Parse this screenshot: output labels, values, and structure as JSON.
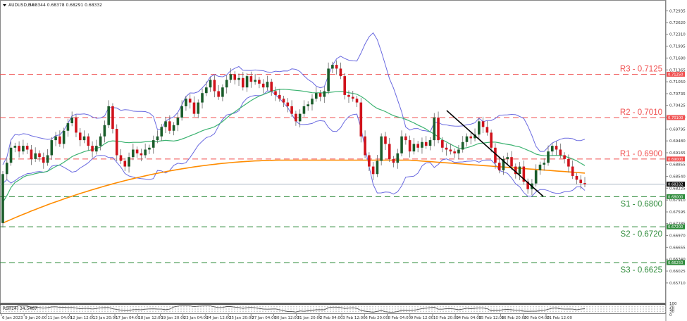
{
  "header": {
    "symbol": "AUDUSD,H4",
    "ohlc": "0.68344 0.68378 0.68291 0.68332"
  },
  "colors": {
    "bull": "#1a5c2a",
    "bear": "#d0121b",
    "wick": "#666666",
    "bollinger": "#6a6ae0",
    "ma_fast": "#3cb371",
    "ma_slow": "#ff8c00",
    "resistance": "#f05050",
    "support": "#2e8b3a",
    "current_price_line": "#a9b4c2",
    "trendline": "#000000",
    "rsi_line": "#555555"
  },
  "levels": [
    {
      "name": "R3",
      "label": "R3 - 0.7125",
      "value": 0.7125,
      "tag": "0.71250",
      "type": "resistance"
    },
    {
      "name": "R2",
      "label": "R2 - 0.7010",
      "value": 0.701,
      "tag": "0.70100",
      "type": "resistance"
    },
    {
      "name": "R1",
      "label": "R1 - 0.6900",
      "value": 0.69,
      "tag": "0.69000",
      "type": "resistance"
    },
    {
      "name": "S1",
      "label": "S1 - 0.6800",
      "value": 0.68,
      "tag": "0.68000",
      "type": "support"
    },
    {
      "name": "S2",
      "label": "S2 - 0.6720",
      "value": 0.672,
      "tag": "0.67200",
      "type": "support"
    },
    {
      "name": "S3",
      "label": "S3 - 0.6625",
      "value": 0.6625,
      "tag": "0.66250",
      "type": "support"
    }
  ],
  "current_price": {
    "value": 0.68332,
    "tag": "0.68332"
  },
  "price_axis": {
    "ticks": [
      "0.72935",
      "0.72620",
      "0.72310",
      "0.71995",
      "0.71680",
      "0.71365",
      "0.71050",
      "0.70735",
      "0.70425",
      "0.70110",
      "0.69795",
      "0.69480",
      "0.69165",
      "0.68855",
      "0.68540",
      "0.68225",
      "0.67910",
      "0.67595",
      "0.67285",
      "0.66970",
      "0.66655",
      "0.66340",
      "0.66025",
      "0.65710"
    ]
  },
  "rsi": {
    "label": "RSI(14) 34.5467",
    "ticks": [
      "100",
      "70",
      "50",
      "30",
      "0"
    ]
  },
  "time_axis": {
    "labels": [
      "6 Jan 2023",
      "9 Jan 20:00",
      "11 Jan 04:00",
      "12 Jan 12:00",
      "13 Jan 20:00",
      "17 Jan 04:00",
      "18 Jan 12:00",
      "19 Jan 20:00",
      "23 Jan 04:00",
      "24 Jan 12:00",
      "25 Jan 20:00",
      "27 Jan 04:00",
      "30 Jan 12:00",
      "31 Jan 20:00",
      "2 Feb 04:00",
      "3 Feb 12:00",
      "6 Feb 20:00",
      "8 Feb 04:00",
      "9 Feb 12:00",
      "10 Feb 20:00",
      "14 Feb 04:00",
      "15 Feb 12:00",
      "16 Feb 20:00",
      "20 Feb 04:00",
      "21 Feb 12:00"
    ]
  },
  "chart_data": {
    "type": "candlestick",
    "title": "AUDUSD,H4",
    "ohlc_last": {
      "open": 0.68344,
      "high": 0.68378,
      "low": 0.68291,
      "close": 0.68332
    },
    "ylim": [
      0.6555,
      0.731
    ],
    "xlabel": "",
    "ylabel": "",
    "grid": false,
    "indicators": [
      "Bollinger Bands (blue)",
      "MA fast (green)",
      "MA 200 (orange)",
      "RSI(14)"
    ],
    "rsi_value": 34.5467,
    "annotations": [
      "R3 - 0.7125",
      "R2 - 0.7010",
      "R1 - 0.6900",
      "S1 - 0.6800",
      "S2 - 0.6720",
      "S3 - 0.6625",
      "descending trendline from 14 Feb high"
    ],
    "close_path": [
      [
        0.673,
        0.686
      ],
      [
        0.686,
        0.689
      ],
      [
        0.689,
        0.693
      ],
      [
        0.693,
        0.6935
      ],
      [
        0.6935,
        0.692
      ],
      [
        0.692,
        0.6935
      ],
      [
        0.6935,
        0.6925
      ],
      [
        0.6925,
        0.69
      ],
      [
        0.69,
        0.6915
      ],
      [
        0.6915,
        0.6905
      ],
      [
        0.6905,
        0.689
      ],
      [
        0.689,
        0.691
      ],
      [
        0.691,
        0.695
      ],
      [
        0.695,
        0.696
      ],
      [
        0.696,
        0.694
      ],
      [
        0.694,
        0.6975
      ],
      [
        0.6975,
        0.6995
      ],
      [
        0.6995,
        0.701
      ],
      [
        0.701,
        0.697
      ],
      [
        0.697,
        0.695
      ],
      [
        0.695,
        0.696
      ],
      [
        0.696,
        0.6935
      ],
      [
        0.6935,
        0.692
      ],
      [
        0.692,
        0.6935
      ],
      [
        0.6935,
        0.696
      ],
      [
        0.696,
        0.699
      ],
      [
        0.699,
        0.704
      ],
      [
        0.704,
        0.698
      ],
      [
        0.698,
        0.691
      ],
      [
        0.691,
        0.6895
      ],
      [
        0.6895,
        0.688
      ],
      [
        0.688,
        0.6905
      ],
      [
        0.6905,
        0.6925
      ],
      [
        0.6925,
        0.6915
      ],
      [
        0.6915,
        0.691
      ],
      [
        0.691,
        0.6925
      ],
      [
        0.6925,
        0.693
      ],
      [
        0.693,
        0.695
      ],
      [
        0.695,
        0.696
      ],
      [
        0.696,
        0.6985
      ],
      [
        0.6985,
        0.7
      ],
      [
        0.7,
        0.6975
      ],
      [
        0.6975,
        0.699
      ],
      [
        0.699,
        0.701
      ],
      [
        0.701,
        0.704
      ],
      [
        0.704,
        0.706
      ],
      [
        0.706,
        0.705
      ],
      [
        0.705,
        0.702
      ],
      [
        0.702,
        0.705
      ],
      [
        0.705,
        0.7075
      ],
      [
        0.7075,
        0.709
      ],
      [
        0.709,
        0.711
      ],
      [
        0.711,
        0.708
      ],
      [
        0.708,
        0.7065
      ],
      [
        0.7065,
        0.709
      ],
      [
        0.709,
        0.711
      ],
      [
        0.711,
        0.7125
      ],
      [
        0.7125,
        0.711
      ],
      [
        0.711,
        0.7115
      ],
      [
        0.7115,
        0.709
      ],
      [
        0.709,
        0.712
      ],
      [
        0.712,
        0.7105
      ],
      [
        0.7105,
        0.711
      ],
      [
        0.711,
        0.71
      ],
      [
        0.71,
        0.709
      ],
      [
        0.709,
        0.7105
      ],
      [
        0.7105,
        0.708
      ],
      [
        0.708,
        0.707
      ],
      [
        0.707,
        0.706
      ],
      [
        0.706,
        0.705
      ],
      [
        0.705,
        0.704
      ],
      [
        0.704,
        0.702
      ],
      [
        0.702,
        0.7
      ],
      [
        0.7,
        0.702
      ],
      [
        0.702,
        0.704
      ],
      [
        0.704,
        0.7045
      ],
      [
        0.7045,
        0.706
      ],
      [
        0.706,
        0.7075
      ],
      [
        0.7075,
        0.7065
      ],
      [
        0.7065,
        0.708
      ],
      [
        0.708,
        0.714
      ],
      [
        0.714,
        0.715
      ],
      [
        0.715,
        0.714
      ],
      [
        0.714,
        0.712
      ],
      [
        0.712,
        0.707
      ],
      [
        0.707,
        0.7065
      ],
      [
        0.7065,
        0.706
      ],
      [
        0.706,
        0.705
      ],
      [
        0.705,
        0.696
      ],
      [
        0.696,
        0.691
      ],
      [
        0.691,
        0.688
      ],
      [
        0.688,
        0.686
      ],
      [
        0.686,
        0.6895
      ],
      [
        0.6895,
        0.696
      ],
      [
        0.696,
        0.694
      ],
      [
        0.694,
        0.69
      ],
      [
        0.69,
        0.689
      ],
      [
        0.689,
        0.6915
      ],
      [
        0.6915,
        0.696
      ],
      [
        0.696,
        0.695
      ],
      [
        0.695,
        0.692
      ],
      [
        0.692,
        0.694
      ],
      [
        0.694,
        0.693
      ],
      [
        0.693,
        0.6945
      ],
      [
        0.6945,
        0.6935
      ],
      [
        0.6935,
        0.695
      ],
      [
        0.695,
        0.701
      ],
      [
        0.701,
        0.695
      ],
      [
        0.695,
        0.693
      ],
      [
        0.693,
        0.6925
      ],
      [
        0.6925,
        0.692
      ],
      [
        0.692,
        0.6915
      ],
      [
        0.6915,
        0.6925
      ],
      [
        0.6925,
        0.6945
      ],
      [
        0.6945,
        0.696
      ],
      [
        0.696,
        0.6955
      ],
      [
        0.6955,
        0.6965
      ],
      [
        0.6965,
        0.7
      ],
      [
        0.7,
        0.6985
      ],
      [
        0.6985,
        0.697
      ],
      [
        0.697,
        0.693
      ],
      [
        0.693,
        0.689
      ],
      [
        0.689,
        0.687
      ],
      [
        0.687,
        0.69
      ],
      [
        0.69,
        0.6905
      ],
      [
        0.6905,
        0.688
      ],
      [
        0.688,
        0.686
      ],
      [
        0.686,
        0.688
      ],
      [
        0.688,
        0.684
      ],
      [
        0.684,
        0.682
      ],
      [
        0.682,
        0.6835
      ],
      [
        0.6835,
        0.687
      ],
      [
        0.687,
        0.6885
      ],
      [
        0.6885,
        0.689
      ],
      [
        0.689,
        0.692
      ],
      [
        0.692,
        0.6935
      ],
      [
        0.6935,
        0.6925
      ],
      [
        0.6925,
        0.691
      ],
      [
        0.691,
        0.69
      ],
      [
        0.69,
        0.688
      ],
      [
        0.688,
        0.6855
      ],
      [
        0.6855,
        0.6845
      ],
      [
        0.6845,
        0.6836
      ],
      [
        0.6836,
        0.6833
      ]
    ]
  }
}
